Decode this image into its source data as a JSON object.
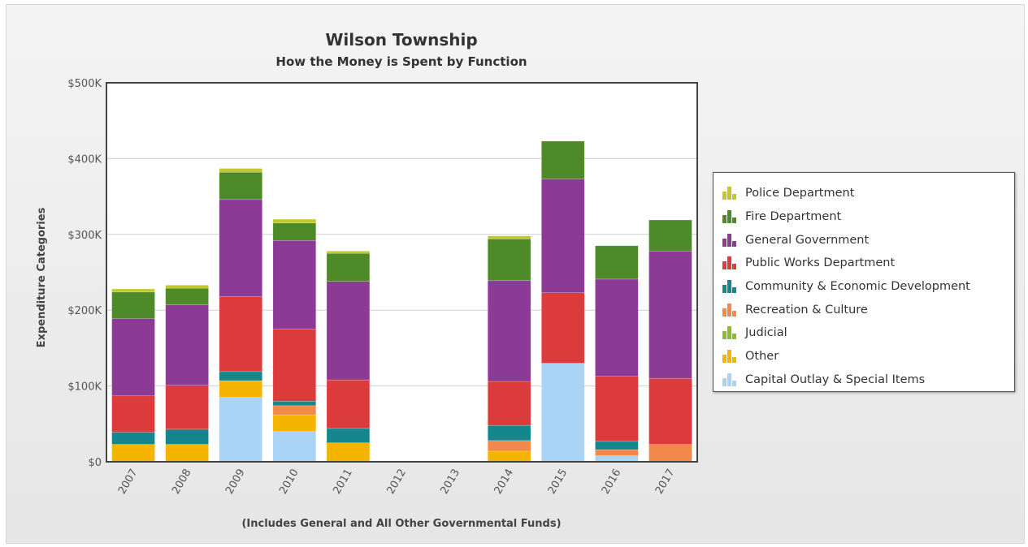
{
  "chart_data": {
    "type": "bar",
    "stacked": true,
    "title": "Wilson Township",
    "subtitle": "How the Money is Spent by Function",
    "xlabel": "(Includes General and All Other Governmental Funds)",
    "ylabel": "Expenditure Categories",
    "ylim": [
      0,
      500000
    ],
    "y_ticks": [
      "$0",
      "$100K",
      "$200K",
      "$300K",
      "$400K",
      "$500K"
    ],
    "grid": true,
    "legend_position": "right",
    "categories": [
      "2007",
      "2008",
      "2009",
      "2010",
      "2011",
      "2012",
      "2013",
      "2014",
      "2015",
      "2016",
      "2017"
    ],
    "series": [
      {
        "name": "Capital Outlay & Special Items",
        "color": "#a9d4f5",
        "values": [
          0,
          0,
          85000,
          40000,
          0,
          0,
          0,
          0,
          130000,
          8000,
          0
        ]
      },
      {
        "name": "Other",
        "color": "#f5b400",
        "values": [
          23000,
          23000,
          22000,
          22000,
          25000,
          0,
          0,
          14000,
          0,
          0,
          0
        ]
      },
      {
        "name": "Judicial",
        "color": "#8bbf2a",
        "values": [
          0,
          0,
          0,
          0,
          0,
          0,
          0,
          0,
          0,
          0,
          0
        ]
      },
      {
        "name": "Recreation & Culture",
        "color": "#f0894a",
        "values": [
          0,
          0,
          0,
          12000,
          0,
          0,
          0,
          14000,
          0,
          8000,
          23000
        ]
      },
      {
        "name": "Community & Economic Development",
        "color": "#15868e",
        "values": [
          16000,
          20000,
          12000,
          6000,
          19000,
          0,
          0,
          20000,
          0,
          11000,
          0
        ]
      },
      {
        "name": "Public Works Department",
        "color": "#dc3b3b",
        "values": [
          48000,
          58000,
          99000,
          95000,
          64000,
          0,
          0,
          58000,
          93000,
          86000,
          87000
        ]
      },
      {
        "name": "General Government",
        "color": "#8b3a96",
        "values": [
          102000,
          106000,
          128000,
          117000,
          130000,
          0,
          0,
          133000,
          150000,
          128000,
          168000
        ]
      },
      {
        "name": "Fire Department",
        "color": "#4e8a27",
        "values": [
          35000,
          22000,
          36000,
          23000,
          37000,
          0,
          0,
          55000,
          50000,
          44000,
          41000
        ]
      },
      {
        "name": "Police Department",
        "color": "#c3c828",
        "values": [
          4000,
          4000,
          5000,
          5000,
          3000,
          0,
          0,
          4000,
          0,
          0,
          0
        ]
      }
    ]
  },
  "legend_order": [
    "Police Department",
    "Fire Department",
    "General Government",
    "Public Works Department",
    "Community & Economic Development",
    "Recreation & Culture",
    "Judicial",
    "Other",
    "Capital Outlay & Special Items"
  ]
}
